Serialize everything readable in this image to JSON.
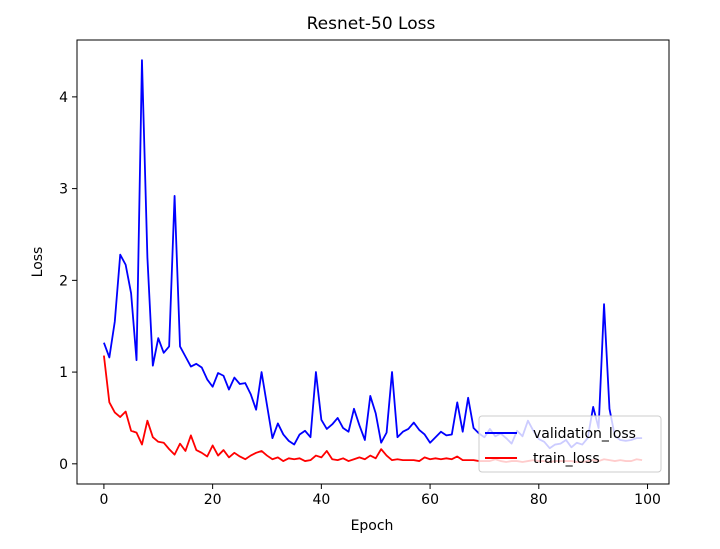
{
  "chart_data": {
    "type": "line",
    "title": "Resnet-50 Loss",
    "xlabel": "Epoch",
    "ylabel": "Loss",
    "xlim": [
      -4.95,
      103.95
    ],
    "ylim": [
      -0.22,
      4.62
    ],
    "xticks": [
      0,
      20,
      40,
      60,
      80,
      100
    ],
    "yticks": [
      0,
      1,
      2,
      3,
      4
    ],
    "legend_position": "lower-right",
    "grid": false,
    "x": [
      0,
      1,
      2,
      3,
      4,
      5,
      6,
      7,
      8,
      9,
      10,
      11,
      12,
      13,
      14,
      15,
      16,
      17,
      18,
      19,
      20,
      21,
      22,
      23,
      24,
      25,
      26,
      27,
      28,
      29,
      30,
      31,
      32,
      33,
      34,
      35,
      36,
      37,
      38,
      39,
      40,
      41,
      42,
      43,
      44,
      45,
      46,
      47,
      48,
      49,
      50,
      51,
      52,
      53,
      54,
      55,
      56,
      57,
      58,
      59,
      60,
      61,
      62,
      63,
      64,
      65,
      66,
      67,
      68,
      69,
      70,
      71,
      72,
      73,
      74,
      75,
      76,
      77,
      78,
      79,
      80,
      81,
      82,
      83,
      84,
      85,
      86,
      87,
      88,
      89,
      90,
      91,
      92,
      93,
      94,
      95,
      96,
      97,
      98,
      99
    ],
    "series": [
      {
        "name": "validation_loss",
        "color": "#0000ff",
        "values": [
          1.32,
          1.16,
          1.55,
          2.28,
          2.17,
          1.86,
          1.13,
          4.4,
          2.25,
          1.07,
          1.37,
          1.21,
          1.28,
          2.92,
          1.28,
          1.17,
          1.06,
          1.09,
          1.05,
          0.92,
          0.84,
          0.99,
          0.96,
          0.81,
          0.94,
          0.87,
          0.88,
          0.76,
          0.59,
          1.0,
          0.64,
          0.28,
          0.44,
          0.32,
          0.25,
          0.21,
          0.32,
          0.36,
          0.29,
          1.0,
          0.48,
          0.38,
          0.43,
          0.5,
          0.39,
          0.35,
          0.6,
          0.42,
          0.26,
          0.74,
          0.55,
          0.23,
          0.34,
          1.0,
          0.29,
          0.35,
          0.38,
          0.45,
          0.37,
          0.32,
          0.23,
          0.29,
          0.35,
          0.31,
          0.32,
          0.67,
          0.35,
          0.72,
          0.39,
          0.33,
          0.29,
          0.38,
          0.3,
          0.33,
          0.28,
          0.22,
          0.36,
          0.3,
          0.47,
          0.36,
          0.27,
          0.24,
          0.17,
          0.21,
          0.22,
          0.26,
          0.18,
          0.23,
          0.21,
          0.28,
          0.62,
          0.39,
          1.74,
          0.6,
          0.3,
          0.26,
          0.25,
          0.26,
          0.28,
          0.28
        ]
      },
      {
        "name": "train_loss",
        "color": "#ff0000",
        "values": [
          1.18,
          0.67,
          0.56,
          0.51,
          0.57,
          0.36,
          0.34,
          0.21,
          0.47,
          0.29,
          0.24,
          0.23,
          0.16,
          0.1,
          0.22,
          0.14,
          0.31,
          0.15,
          0.12,
          0.08,
          0.2,
          0.09,
          0.15,
          0.07,
          0.12,
          0.08,
          0.05,
          0.09,
          0.12,
          0.14,
          0.09,
          0.05,
          0.07,
          0.03,
          0.06,
          0.05,
          0.06,
          0.03,
          0.04,
          0.09,
          0.07,
          0.14,
          0.05,
          0.04,
          0.06,
          0.03,
          0.05,
          0.07,
          0.05,
          0.09,
          0.06,
          0.16,
          0.09,
          0.04,
          0.05,
          0.04,
          0.04,
          0.04,
          0.03,
          0.07,
          0.05,
          0.06,
          0.05,
          0.06,
          0.05,
          0.08,
          0.04,
          0.04,
          0.04,
          0.03,
          0.03,
          0.03,
          0.05,
          0.03,
          0.02,
          0.03,
          0.03,
          0.02,
          0.03,
          0.04,
          0.03,
          0.03,
          0.02,
          0.03,
          0.03,
          0.03,
          0.03,
          0.02,
          0.02,
          0.03,
          0.04,
          0.03,
          0.05,
          0.04,
          0.03,
          0.04,
          0.03,
          0.03,
          0.05,
          0.04
        ]
      }
    ]
  }
}
